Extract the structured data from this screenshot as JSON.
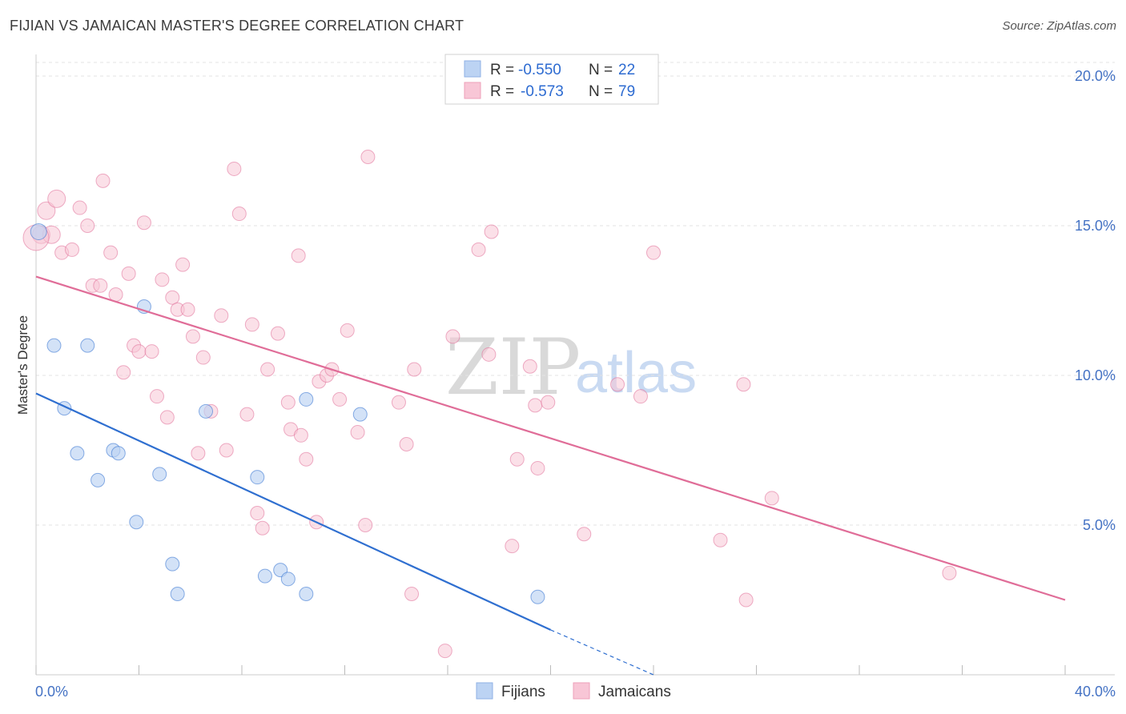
{
  "title": "FIJIAN VS JAMAICAN MASTER'S DEGREE CORRELATION CHART",
  "source": "Source: ZipAtlas.com",
  "watermark": {
    "zip": "ZIP",
    "atlas": "atlas"
  },
  "legend": {
    "rows": [
      {
        "r_label": "R =",
        "r_value": "-0.550",
        "n_label": "N =",
        "n_value": "22",
        "color": "#a9c6f0"
      },
      {
        "r_label": "R =",
        "r_value": "-0.573",
        "n_label": "N =",
        "n_value": "79",
        "color": "#f7b8cc"
      }
    ]
  },
  "bottom_legend": {
    "fijians": "Fijians",
    "jamaicans": "Jamaicans"
  },
  "chart_data": {
    "type": "scatter",
    "ylabel": "Master's Degree",
    "xlim": [
      0,
      40
    ],
    "ylim": [
      0,
      20
    ],
    "x_tick_labels": [
      "0.0%",
      "40.0%"
    ],
    "y_ticks": [
      5,
      10,
      15,
      20
    ],
    "y_tick_labels": [
      "5.0%",
      "10.0%",
      "15.0%",
      "20.0%"
    ],
    "grid": true,
    "colors": {
      "fijians": "#2f6fd0",
      "jamaicans": "#e06d98",
      "fijians_fill": "#bcd3f3",
      "jamaicans_fill": "#f8c6d6"
    },
    "series": [
      {
        "name": "Fijians",
        "points": [
          [
            0.1,
            14.8
          ],
          [
            0.7,
            11.0
          ],
          [
            1.1,
            8.9
          ],
          [
            1.6,
            7.4
          ],
          [
            2.0,
            11.0
          ],
          [
            2.4,
            6.5
          ],
          [
            3.0,
            7.5
          ],
          [
            3.2,
            7.4
          ],
          [
            3.9,
            5.1
          ],
          [
            4.2,
            12.3
          ],
          [
            4.8,
            6.7
          ],
          [
            5.3,
            3.7
          ],
          [
            5.5,
            2.7
          ],
          [
            6.6,
            8.8
          ],
          [
            8.6,
            6.6
          ],
          [
            8.9,
            3.3
          ],
          [
            9.5,
            3.5
          ],
          [
            9.8,
            3.2
          ],
          [
            10.5,
            9.2
          ],
          [
            10.5,
            2.7
          ],
          [
            12.6,
            8.7
          ],
          [
            19.5,
            2.6
          ]
        ],
        "trend": {
          "x0": 0,
          "y0": 9.4,
          "x1": 20,
          "y1": 1.5,
          "dash_to_x": 24,
          "dash_to_y": 0
        }
      },
      {
        "name": "Jamaicans",
        "points": [
          [
            0.2,
            14.7
          ],
          [
            0.4,
            15.5
          ],
          [
            0.6,
            14.7
          ],
          [
            0.8,
            15.9
          ],
          [
            1.0,
            14.1
          ],
          [
            1.4,
            14.2
          ],
          [
            1.7,
            15.6
          ],
          [
            2.0,
            15.0
          ],
          [
            2.2,
            13.0
          ],
          [
            2.5,
            13.0
          ],
          [
            2.6,
            16.5
          ],
          [
            2.9,
            14.1
          ],
          [
            3.1,
            12.7
          ],
          [
            3.4,
            10.1
          ],
          [
            3.6,
            13.4
          ],
          [
            3.8,
            11.0
          ],
          [
            4.0,
            10.8
          ],
          [
            4.2,
            15.1
          ],
          [
            4.5,
            10.8
          ],
          [
            4.7,
            9.3
          ],
          [
            4.9,
            13.2
          ],
          [
            5.1,
            8.6
          ],
          [
            5.3,
            12.6
          ],
          [
            5.5,
            12.2
          ],
          [
            5.7,
            13.7
          ],
          [
            5.9,
            12.2
          ],
          [
            6.1,
            11.3
          ],
          [
            6.3,
            7.4
          ],
          [
            6.5,
            10.6
          ],
          [
            6.8,
            8.8
          ],
          [
            7.2,
            12.0
          ],
          [
            7.4,
            7.5
          ],
          [
            7.7,
            16.9
          ],
          [
            7.9,
            15.4
          ],
          [
            8.2,
            8.7
          ],
          [
            8.4,
            11.7
          ],
          [
            8.6,
            5.4
          ],
          [
            8.8,
            4.9
          ],
          [
            9.0,
            10.2
          ],
          [
            9.4,
            11.4
          ],
          [
            9.8,
            9.1
          ],
          [
            9.9,
            8.2
          ],
          [
            10.2,
            14.0
          ],
          [
            10.3,
            8.0
          ],
          [
            10.5,
            7.2
          ],
          [
            10.9,
            5.1
          ],
          [
            11.0,
            9.8
          ],
          [
            11.3,
            10.0
          ],
          [
            11.5,
            10.2
          ],
          [
            11.8,
            9.2
          ],
          [
            12.1,
            11.5
          ],
          [
            12.5,
            8.1
          ],
          [
            12.8,
            5.0
          ],
          [
            12.9,
            17.3
          ],
          [
            14.1,
            9.1
          ],
          [
            14.4,
            7.7
          ],
          [
            14.6,
            2.7
          ],
          [
            14.7,
            10.2
          ],
          [
            15.9,
            0.8
          ],
          [
            16.2,
            11.3
          ],
          [
            17.2,
            14.2
          ],
          [
            17.6,
            10.7
          ],
          [
            17.7,
            14.8
          ],
          [
            18.5,
            4.3
          ],
          [
            18.7,
            7.2
          ],
          [
            19.2,
            10.3
          ],
          [
            19.4,
            9.0
          ],
          [
            19.5,
            6.9
          ],
          [
            19.9,
            9.1
          ],
          [
            21.3,
            4.7
          ],
          [
            22.6,
            9.7
          ],
          [
            23.5,
            9.3
          ],
          [
            24.0,
            14.1
          ],
          [
            26.6,
            4.5
          ],
          [
            27.5,
            9.7
          ],
          [
            27.6,
            2.5
          ],
          [
            28.6,
            5.9
          ],
          [
            35.5,
            3.4
          ],
          [
            0.0,
            14.6
          ]
        ],
        "trend": {
          "x0": 0,
          "y0": 13.3,
          "x1": 40,
          "y1": 2.5
        }
      }
    ]
  }
}
